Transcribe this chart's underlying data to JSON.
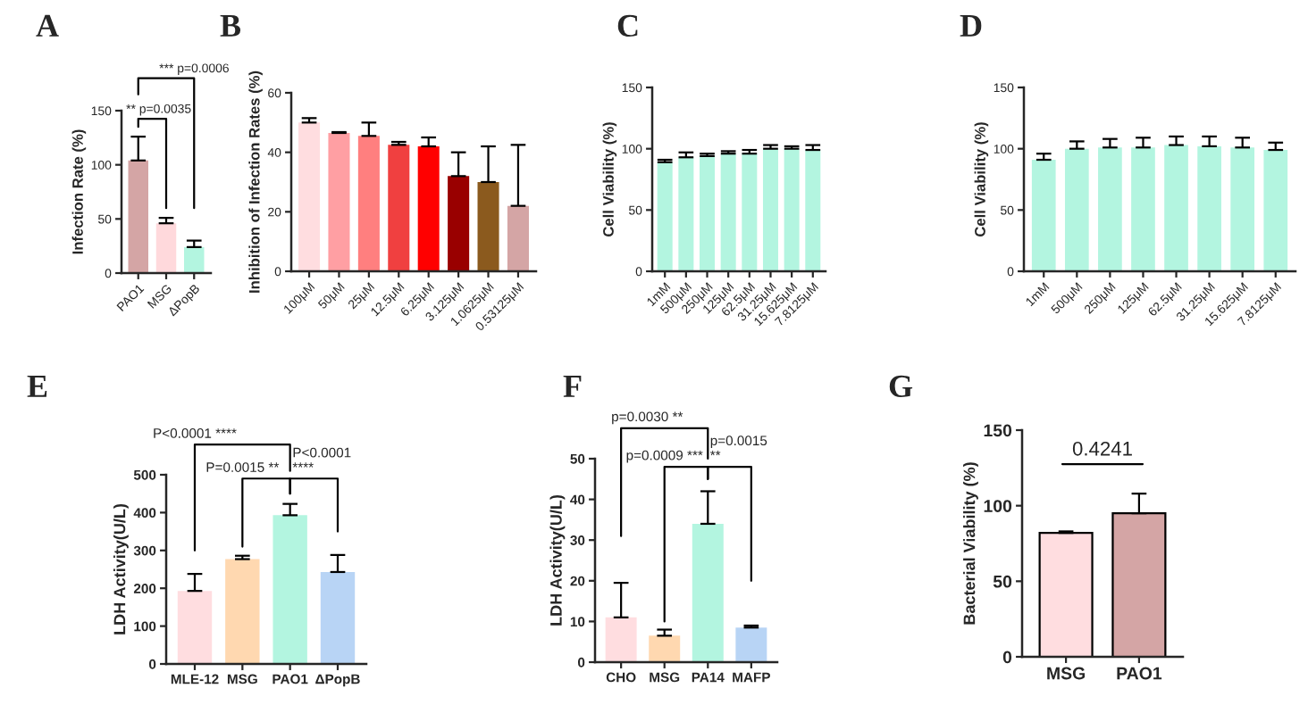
{
  "chart_data": [
    {
      "type": "bar",
      "title": "A",
      "ylabel": "Infection Rate (%)",
      "categories": [
        "PAO1",
        "MSG",
        "ΔPopB"
      ],
      "values": [
        104,
        46,
        24
      ],
      "errors": [
        [
          104,
          126
        ],
        [
          46,
          51
        ],
        [
          24,
          30
        ]
      ],
      "colors": [
        "#d4a5a5",
        "#ffd9dc",
        "#b3f5e0"
      ],
      "ylim": [
        0,
        150
      ],
      "yticks": [
        0,
        50,
        100,
        150
      ],
      "annotations": [
        "** p=0.0035",
        "*** p=0.0006"
      ]
    },
    {
      "type": "bar",
      "title": "B",
      "ylabel": "Inhibition of Infection Rates (%)",
      "categories": [
        "100μM",
        "50μM",
        "25μM",
        "12.5μM",
        "6.25μM",
        "3.125μM",
        "1.0625μM",
        "0.53125μM"
      ],
      "values": [
        50,
        46.5,
        45.5,
        42.5,
        42,
        32,
        30,
        22
      ],
      "errors": [
        [
          50,
          51.5
        ],
        [
          46.5,
          46.8
        ],
        [
          45.5,
          50
        ],
        [
          42.5,
          43.5
        ],
        [
          42,
          45
        ],
        [
          32,
          40
        ],
        [
          30,
          42
        ],
        [
          22,
          42.5
        ]
      ],
      "colors": [
        "#ffdde0",
        "#ff9fa3",
        "#ff7f7f",
        "#f04040",
        "#ff0000",
        "#990000",
        "#8b5a1e",
        "#d4a5a5"
      ],
      "ylim": [
        0,
        60
      ],
      "yticks": [
        0,
        20,
        40,
        60
      ]
    },
    {
      "type": "bar",
      "title": "C",
      "ylabel": "Cell Viability (%)",
      "categories": [
        "1mM",
        "500μM",
        "250μM",
        "125μM",
        "62.5μM",
        "31.25μM",
        "15.625μM",
        "7.8125μM"
      ],
      "values": [
        89,
        93,
        94,
        96,
        96,
        100,
        100,
        99
      ],
      "errors": [
        [
          89,
          91
        ],
        [
          93,
          97
        ],
        [
          94,
          96
        ],
        [
          96,
          98
        ],
        [
          96,
          99
        ],
        [
          100,
          103
        ],
        [
          100,
          102
        ],
        [
          99,
          103
        ]
      ],
      "colors": [
        "#b3f5e0",
        "#b3f5e0",
        "#b3f5e0",
        "#b3f5e0",
        "#b3f5e0",
        "#b3f5e0",
        "#b3f5e0",
        "#b3f5e0"
      ],
      "ylim": [
        0,
        150
      ],
      "yticks": [
        0,
        50,
        100,
        150
      ]
    },
    {
      "type": "bar",
      "title": "D",
      "ylabel": "Cell Viability (%)",
      "categories": [
        "1mM",
        "500μM",
        "250μM",
        "125μM",
        "62.5μM",
        "31.25μM",
        "15.625μM",
        "7.8125μM"
      ],
      "values": [
        91,
        100,
        101,
        101,
        103,
        102,
        101,
        99
      ],
      "errors": [
        [
          91,
          96
        ],
        [
          100,
          106
        ],
        [
          101,
          108
        ],
        [
          101,
          109
        ],
        [
          103,
          110
        ],
        [
          102,
          110
        ],
        [
          101,
          109
        ],
        [
          99,
          105
        ]
      ],
      "colors": [
        "#b3f5e0",
        "#b3f5e0",
        "#b3f5e0",
        "#b3f5e0",
        "#b3f5e0",
        "#b3f5e0",
        "#b3f5e0",
        "#b3f5e0"
      ],
      "ylim": [
        0,
        150
      ],
      "yticks": [
        0,
        50,
        100,
        150
      ]
    },
    {
      "type": "bar",
      "title": "E",
      "ylabel": "LDH Activity(U/L)",
      "categories": [
        "MLE-12",
        "MSG",
        "PAO1",
        "ΔPopB"
      ],
      "values": [
        193,
        277,
        393,
        243
      ],
      "errors": [
        [
          193,
          238
        ],
        [
          277,
          286
        ],
        [
          393,
          423
        ],
        [
          243,
          288
        ]
      ],
      "colors": [
        "#ffdde0",
        "#ffd8b0",
        "#b3f5e0",
        "#b8d4f5"
      ],
      "ylim": [
        0,
        500
      ],
      "yticks": [
        0,
        100,
        200,
        300,
        400,
        500
      ],
      "annotations": [
        "P<0.0001 ****",
        "P=0.0015 **",
        "P<0.0001\n****"
      ]
    },
    {
      "type": "bar",
      "title": "F",
      "ylabel": "LDH Activity(U/L)",
      "categories": [
        "CHO",
        "MSG",
        "PA14",
        "MAFP"
      ],
      "values": [
        11,
        6.5,
        34,
        8.5
      ],
      "errors": [
        [
          11,
          19.5
        ],
        [
          6.5,
          8
        ],
        [
          34,
          42
        ],
        [
          8.5,
          9
        ]
      ],
      "colors": [
        "#ffdde0",
        "#ffd8b0",
        "#b3f5e0",
        "#b8d4f5"
      ],
      "ylim": [
        0,
        50
      ],
      "yticks": [
        0,
        10,
        20,
        30,
        40,
        50
      ],
      "annotations": [
        "p=0.0030 **",
        "p=0.0009 ***",
        "p=0.0015\n**"
      ]
    },
    {
      "type": "bar",
      "title": "G",
      "ylabel": "Bacterial Viability (%)",
      "categories": [
        "MSG",
        "PAO1"
      ],
      "values": [
        82,
        95
      ],
      "errors": [
        [
          82,
          83
        ],
        [
          95,
          108
        ]
      ],
      "colors": [
        "#ffdde0",
        "#d4a5a5"
      ],
      "ylim": [
        0,
        150
      ],
      "yticks": [
        0,
        50,
        100,
        150
      ],
      "annotations": [
        "0.4241"
      ]
    }
  ]
}
